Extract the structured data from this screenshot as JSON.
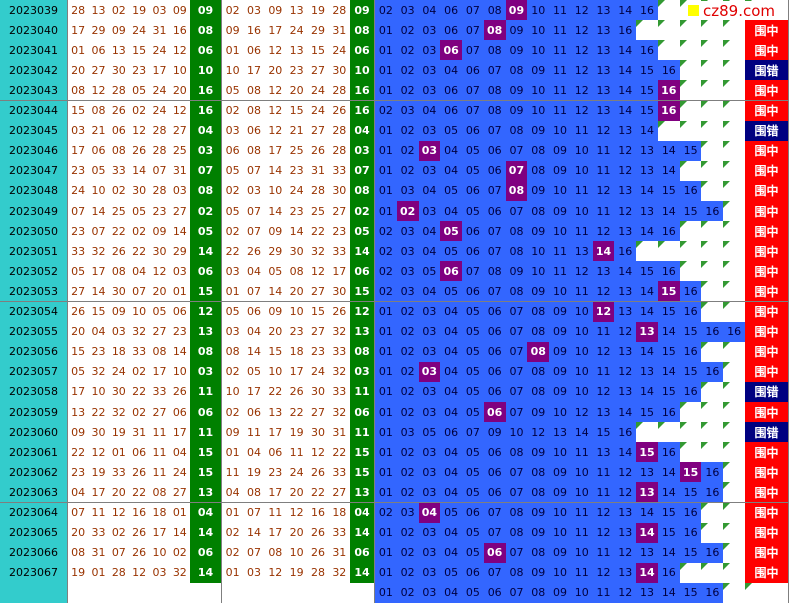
{
  "logo": "cz89.com",
  "rows": [
    {
      "issue": "2023039",
      "draw": [
        "28",
        "13",
        "02",
        "19",
        "03",
        "09"
      ],
      "blue": "09",
      "sorted": [
        "02",
        "03",
        "09",
        "13",
        "19",
        "28"
      ],
      "blue2": "09",
      "cells": [
        "02",
        "03",
        "04",
        "06",
        "07",
        "08",
        "09",
        "10",
        "11",
        "12",
        "13",
        "14",
        "16"
      ]
    },
    {
      "issue": "2023040",
      "draw": [
        "17",
        "29",
        "09",
        "24",
        "31",
        "16"
      ],
      "blue": "08",
      "sorted": [
        "09",
        "16",
        "17",
        "24",
        "29",
        "31"
      ],
      "blue2": "08",
      "cells": [
        "01",
        "02",
        "03",
        "06",
        "07",
        "08",
        "09",
        "10",
        "11",
        "12",
        "13",
        "16"
      ],
      "result": "围中"
    },
    {
      "issue": "2023041",
      "draw": [
        "01",
        "06",
        "13",
        "15",
        "24",
        "12"
      ],
      "blue": "06",
      "sorted": [
        "01",
        "06",
        "12",
        "13",
        "15",
        "24"
      ],
      "blue2": "06",
      "cells": [
        "01",
        "02",
        "03",
        "06",
        "07",
        "08",
        "09",
        "10",
        "11",
        "12",
        "13",
        "14",
        "16"
      ],
      "result": "围中"
    },
    {
      "issue": "2023042",
      "draw": [
        "20",
        "27",
        "30",
        "23",
        "17",
        "10"
      ],
      "blue": "10",
      "sorted": [
        "10",
        "17",
        "20",
        "23",
        "27",
        "30"
      ],
      "blue2": "10",
      "cells": [
        "01",
        "02",
        "03",
        "04",
        "06",
        "07",
        "08",
        "09",
        "11",
        "12",
        "13",
        "14",
        "15",
        "16"
      ],
      "result": "围错"
    },
    {
      "issue": "2023043",
      "draw": [
        "08",
        "12",
        "28",
        "05",
        "24",
        "20"
      ],
      "blue": "16",
      "sorted": [
        "05",
        "08",
        "12",
        "20",
        "24",
        "28"
      ],
      "blue2": "16",
      "cells": [
        "01",
        "02",
        "03",
        "06",
        "07",
        "08",
        "09",
        "10",
        "11",
        "12",
        "13",
        "14",
        "15",
        "16"
      ],
      "result": "围中"
    },
    {
      "issue": "2023044",
      "draw": [
        "15",
        "08",
        "26",
        "02",
        "24",
        "12"
      ],
      "blue": "16",
      "sorted": [
        "02",
        "08",
        "12",
        "15",
        "24",
        "26"
      ],
      "blue2": "16",
      "cells": [
        "02",
        "03",
        "04",
        "06",
        "07",
        "08",
        "09",
        "10",
        "11",
        "12",
        "13",
        "14",
        "15",
        "16"
      ],
      "result": "围中"
    },
    {
      "issue": "2023045",
      "draw": [
        "03",
        "21",
        "06",
        "12",
        "28",
        "27"
      ],
      "blue": "04",
      "sorted": [
        "03",
        "06",
        "12",
        "21",
        "27",
        "28"
      ],
      "blue2": "04",
      "cells": [
        "01",
        "02",
        "03",
        "05",
        "06",
        "07",
        "08",
        "09",
        "10",
        "11",
        "12",
        "13",
        "14"
      ],
      "result": "围错"
    },
    {
      "issue": "2023046",
      "draw": [
        "17",
        "06",
        "08",
        "26",
        "28",
        "25"
      ],
      "blue": "03",
      "sorted": [
        "06",
        "08",
        "17",
        "25",
        "26",
        "28"
      ],
      "blue2": "03",
      "cells": [
        "01",
        "02",
        "03",
        "04",
        "05",
        "06",
        "07",
        "08",
        "09",
        "10",
        "11",
        "12",
        "13",
        "14",
        "15"
      ],
      "result": "围中"
    },
    {
      "issue": "2023047",
      "draw": [
        "23",
        "05",
        "33",
        "14",
        "07",
        "31"
      ],
      "blue": "07",
      "sorted": [
        "05",
        "07",
        "14",
        "23",
        "31",
        "33"
      ],
      "blue2": "07",
      "cells": [
        "01",
        "02",
        "03",
        "04",
        "05",
        "06",
        "07",
        "08",
        "09",
        "10",
        "11",
        "12",
        "13",
        "14"
      ],
      "result": "围中"
    },
    {
      "issue": "2023048",
      "draw": [
        "24",
        "10",
        "02",
        "30",
        "28",
        "03"
      ],
      "blue": "08",
      "sorted": [
        "02",
        "03",
        "10",
        "24",
        "28",
        "30"
      ],
      "blue2": "08",
      "cells": [
        "01",
        "03",
        "04",
        "05",
        "06",
        "07",
        "08",
        "09",
        "10",
        "11",
        "12",
        "13",
        "14",
        "15",
        "16"
      ],
      "result": "围中"
    },
    {
      "issue": "2023049",
      "draw": [
        "07",
        "14",
        "25",
        "05",
        "23",
        "27"
      ],
      "blue": "02",
      "sorted": [
        "05",
        "07",
        "14",
        "23",
        "25",
        "27"
      ],
      "blue2": "02",
      "cells": [
        "01",
        "02",
        "03",
        "04",
        "05",
        "06",
        "07",
        "08",
        "09",
        "10",
        "11",
        "12",
        "13",
        "14",
        "15",
        "16"
      ],
      "result": "围中"
    },
    {
      "issue": "2023050",
      "draw": [
        "23",
        "07",
        "22",
        "02",
        "09",
        "14"
      ],
      "blue": "05",
      "sorted": [
        "02",
        "07",
        "09",
        "14",
        "22",
        "23"
      ],
      "blue2": "05",
      "cells": [
        "02",
        "03",
        "04",
        "05",
        "06",
        "07",
        "08",
        "09",
        "10",
        "11",
        "12",
        "13",
        "14",
        "16"
      ],
      "result": "围中"
    },
    {
      "issue": "2023051",
      "draw": [
        "33",
        "32",
        "26",
        "22",
        "30",
        "29"
      ],
      "blue": "14",
      "sorted": [
        "22",
        "26",
        "29",
        "30",
        "32",
        "33"
      ],
      "blue2": "14",
      "cells": [
        "02",
        "03",
        "04",
        "05",
        "06",
        "07",
        "08",
        "10",
        "11",
        "13",
        "14",
        "16"
      ],
      "result": "围中"
    },
    {
      "issue": "2023052",
      "draw": [
        "05",
        "17",
        "08",
        "04",
        "12",
        "03"
      ],
      "blue": "06",
      "sorted": [
        "03",
        "04",
        "05",
        "08",
        "12",
        "17"
      ],
      "blue2": "06",
      "cells": [
        "02",
        "03",
        "05",
        "06",
        "07",
        "08",
        "09",
        "10",
        "11",
        "12",
        "13",
        "14",
        "15",
        "16"
      ],
      "result": "围中"
    },
    {
      "issue": "2023053",
      "draw": [
        "27",
        "14",
        "30",
        "07",
        "20",
        "01"
      ],
      "blue": "15",
      "sorted": [
        "01",
        "07",
        "14",
        "20",
        "27",
        "30"
      ],
      "blue2": "15",
      "cells": [
        "02",
        "03",
        "04",
        "05",
        "06",
        "07",
        "08",
        "09",
        "10",
        "11",
        "12",
        "13",
        "14",
        "15",
        "16"
      ],
      "result": "围中"
    },
    {
      "issue": "2023054",
      "draw": [
        "26",
        "15",
        "09",
        "10",
        "05",
        "06"
      ],
      "blue": "12",
      "sorted": [
        "05",
        "06",
        "09",
        "10",
        "15",
        "26"
      ],
      "blue2": "12",
      "cells": [
        "01",
        "02",
        "03",
        "04",
        "05",
        "06",
        "07",
        "08",
        "09",
        "10",
        "12",
        "13",
        "14",
        "15",
        "16"
      ],
      "result": "围中"
    },
    {
      "issue": "2023055",
      "draw": [
        "20",
        "04",
        "03",
        "32",
        "27",
        "23"
      ],
      "blue": "13",
      "sorted": [
        "03",
        "04",
        "20",
        "23",
        "27",
        "32"
      ],
      "blue2": "13",
      "cells": [
        "01",
        "02",
        "03",
        "04",
        "05",
        "06",
        "07",
        "08",
        "09",
        "10",
        "11",
        "12",
        "13",
        "14",
        "15",
        "16",
        "16"
      ],
      "result": "围中"
    },
    {
      "issue": "2023056",
      "draw": [
        "15",
        "23",
        "18",
        "33",
        "08",
        "14"
      ],
      "blue": "08",
      "sorted": [
        "08",
        "14",
        "15",
        "18",
        "23",
        "33"
      ],
      "blue2": "08",
      "cells": [
        "01",
        "02",
        "03",
        "04",
        "05",
        "06",
        "07",
        "08",
        "09",
        "10",
        "12",
        "13",
        "14",
        "15",
        "16"
      ],
      "result": "围中"
    },
    {
      "issue": "2023057",
      "draw": [
        "05",
        "32",
        "24",
        "02",
        "17",
        "10"
      ],
      "blue": "03",
      "sorted": [
        "02",
        "05",
        "10",
        "17",
        "24",
        "32"
      ],
      "blue2": "03",
      "cells": [
        "01",
        "02",
        "03",
        "04",
        "05",
        "06",
        "07",
        "08",
        "09",
        "10",
        "11",
        "12",
        "13",
        "14",
        "15",
        "16"
      ],
      "result": "围中"
    },
    {
      "issue": "2023058",
      "draw": [
        "17",
        "10",
        "30",
        "22",
        "33",
        "26"
      ],
      "blue": "11",
      "sorted": [
        "10",
        "17",
        "22",
        "26",
        "30",
        "33"
      ],
      "blue2": "11",
      "cells": [
        "01",
        "02",
        "03",
        "04",
        "05",
        "06",
        "07",
        "08",
        "09",
        "10",
        "12",
        "13",
        "14",
        "15",
        "16"
      ],
      "result": "围错"
    },
    {
      "issue": "2023059",
      "draw": [
        "13",
        "22",
        "32",
        "02",
        "27",
        "06"
      ],
      "blue": "06",
      "sorted": [
        "02",
        "06",
        "13",
        "22",
        "27",
        "32"
      ],
      "blue2": "06",
      "cells": [
        "01",
        "02",
        "03",
        "04",
        "05",
        "06",
        "07",
        "09",
        "10",
        "12",
        "13",
        "14",
        "15",
        "16"
      ],
      "result": "围中"
    },
    {
      "issue": "2023060",
      "draw": [
        "09",
        "30",
        "19",
        "31",
        "11",
        "17"
      ],
      "blue": "11",
      "sorted": [
        "09",
        "11",
        "17",
        "19",
        "30",
        "31"
      ],
      "blue2": "11",
      "cells": [
        "01",
        "03",
        "05",
        "06",
        "07",
        "09",
        "10",
        "12",
        "13",
        "14",
        "15",
        "16"
      ],
      "result": "围错"
    },
    {
      "issue": "2023061",
      "draw": [
        "22",
        "12",
        "01",
        "06",
        "11",
        "04"
      ],
      "blue": "15",
      "sorted": [
        "01",
        "04",
        "06",
        "11",
        "12",
        "22"
      ],
      "blue2": "15",
      "cells": [
        "01",
        "02",
        "03",
        "04",
        "05",
        "06",
        "08",
        "09",
        "10",
        "11",
        "13",
        "14",
        "15",
        "16"
      ],
      "result": "围中"
    },
    {
      "issue": "2023062",
      "draw": [
        "23",
        "19",
        "33",
        "26",
        "11",
        "24"
      ],
      "blue": "15",
      "sorted": [
        "11",
        "19",
        "23",
        "24",
        "26",
        "33"
      ],
      "blue2": "15",
      "cells": [
        "01",
        "02",
        "03",
        "04",
        "05",
        "06",
        "07",
        "08",
        "09",
        "10",
        "11",
        "12",
        "13",
        "14",
        "15",
        "16"
      ],
      "result": "围中"
    },
    {
      "issue": "2023063",
      "draw": [
        "04",
        "17",
        "20",
        "22",
        "08",
        "27"
      ],
      "blue": "13",
      "sorted": [
        "04",
        "08",
        "17",
        "20",
        "22",
        "27"
      ],
      "blue2": "13",
      "cells": [
        "01",
        "02",
        "03",
        "04",
        "05",
        "06",
        "07",
        "08",
        "09",
        "10",
        "11",
        "12",
        "13",
        "14",
        "15",
        "16"
      ],
      "result": "围中"
    },
    {
      "issue": "2023064",
      "draw": [
        "07",
        "11",
        "12",
        "16",
        "18",
        "01"
      ],
      "blue": "04",
      "sorted": [
        "01",
        "07",
        "11",
        "12",
        "16",
        "18"
      ],
      "blue2": "04",
      "cells": [
        "02",
        "03",
        "04",
        "05",
        "06",
        "07",
        "08",
        "09",
        "10",
        "11",
        "12",
        "13",
        "14",
        "15",
        "16"
      ],
      "result": "围中"
    },
    {
      "issue": "2023065",
      "draw": [
        "20",
        "33",
        "02",
        "26",
        "17",
        "14"
      ],
      "blue": "14",
      "sorted": [
        "02",
        "14",
        "17",
        "20",
        "26",
        "33"
      ],
      "blue2": "14",
      "cells": [
        "01",
        "02",
        "03",
        "04",
        "05",
        "07",
        "08",
        "09",
        "10",
        "11",
        "12",
        "13",
        "14",
        "15",
        "16"
      ],
      "result": "围中"
    },
    {
      "issue": "2023066",
      "draw": [
        "08",
        "31",
        "07",
        "26",
        "10",
        "02"
      ],
      "blue": "06",
      "sorted": [
        "02",
        "07",
        "08",
        "10",
        "26",
        "31"
      ],
      "blue2": "06",
      "cells": [
        "01",
        "02",
        "03",
        "04",
        "05",
        "06",
        "07",
        "08",
        "09",
        "10",
        "11",
        "12",
        "13",
        "14",
        "15",
        "16"
      ],
      "result": "围中"
    },
    {
      "issue": "2023067",
      "draw": [
        "19",
        "01",
        "28",
        "12",
        "03",
        "32"
      ],
      "blue": "14",
      "sorted": [
        "01",
        "03",
        "12",
        "19",
        "28",
        "32"
      ],
      "blue2": "14",
      "cells": [
        "01",
        "02",
        "03",
        "05",
        "06",
        "07",
        "08",
        "09",
        "10",
        "11",
        "12",
        "13",
        "14",
        "16"
      ],
      "result": "围中"
    },
    {
      "cells": [
        "01",
        "02",
        "03",
        "04",
        "05",
        "06",
        "07",
        "08",
        "09",
        "10",
        "11",
        "12",
        "13",
        "14",
        "15",
        "16"
      ]
    }
  ]
}
